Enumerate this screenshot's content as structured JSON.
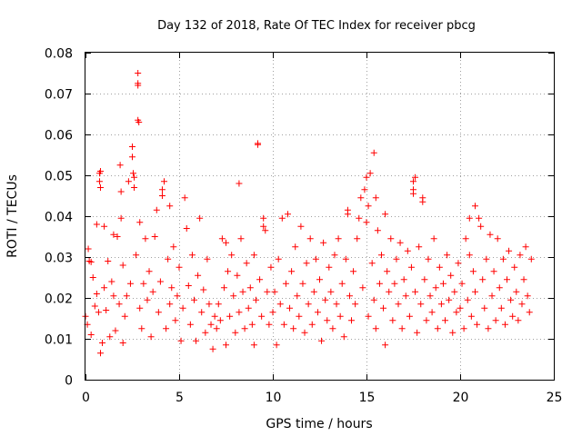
{
  "chart_data": {
    "type": "scatter",
    "title": "Day 132 of 2018, Rate Of TEC Index for receiver pbcg",
    "xlabel": "GPS time / hours",
    "ylabel": "ROTI / TECUs",
    "xlim": [
      0,
      25
    ],
    "ylim": [
      0,
      0.08
    ],
    "x_ticks": [
      "0",
      "5",
      "10",
      "15",
      "20",
      "25"
    ],
    "y_ticks": [
      "0",
      "0.01",
      "0.02",
      "0.03",
      "0.04",
      "0.05",
      "0.06",
      "0.07",
      "0.08"
    ],
    "grid": true,
    "marker": "+",
    "color": "#ff0000",
    "series": [
      {
        "points": [
          [
            0.0,
            0.0155
          ],
          [
            0.1,
            0.0135
          ],
          [
            0.15,
            0.032
          ],
          [
            0.2,
            0.029
          ],
          [
            0.3,
            0.0288
          ],
          [
            0.3,
            0.011
          ],
          [
            0.4,
            0.025
          ],
          [
            0.5,
            0.018
          ],
          [
            0.6,
            0.021
          ],
          [
            0.6,
            0.038
          ],
          [
            0.7,
            0.0165
          ],
          [
            0.75,
            0.0505
          ],
          [
            0.75,
            0.0485
          ],
          [
            0.8,
            0.051
          ],
          [
            0.8,
            0.047
          ],
          [
            0.8,
            0.0065
          ],
          [
            0.9,
            0.009
          ],
          [
            1.0,
            0.0375
          ],
          [
            1.0,
            0.0225
          ],
          [
            1.1,
            0.017
          ],
          [
            1.2,
            0.029
          ],
          [
            1.3,
            0.0105
          ],
          [
            1.4,
            0.024
          ],
          [
            1.5,
            0.0355
          ],
          [
            1.5,
            0.0205
          ],
          [
            1.6,
            0.012
          ],
          [
            1.7,
            0.035
          ],
          [
            1.8,
            0.0185
          ],
          [
            1.85,
            0.0525
          ],
          [
            1.9,
            0.046
          ],
          [
            1.9,
            0.0395
          ],
          [
            2.0,
            0.028
          ],
          [
            2.0,
            0.009
          ],
          [
            2.1,
            0.0155
          ],
          [
            2.2,
            0.0205
          ],
          [
            2.3,
            0.0485
          ],
          [
            2.4,
            0.0235
          ],
          [
            2.5,
            0.057
          ],
          [
            2.5,
            0.0545
          ],
          [
            2.55,
            0.0505
          ],
          [
            2.6,
            0.0495
          ],
          [
            2.6,
            0.047
          ],
          [
            2.7,
            0.0305
          ],
          [
            2.8,
            0.075
          ],
          [
            2.8,
            0.0725
          ],
          [
            2.8,
            0.072
          ],
          [
            2.8,
            0.0635
          ],
          [
            2.85,
            0.063
          ],
          [
            2.9,
            0.0385
          ],
          [
            2.9,
            0.0175
          ],
          [
            3.0,
            0.0125
          ],
          [
            3.1,
            0.0235
          ],
          [
            3.2,
            0.0345
          ],
          [
            3.3,
            0.0195
          ],
          [
            3.4,
            0.0265
          ],
          [
            3.5,
            0.0105
          ],
          [
            3.6,
            0.0215
          ],
          [
            3.7,
            0.035
          ],
          [
            3.8,
            0.0415
          ],
          [
            3.9,
            0.0165
          ],
          [
            4.0,
            0.024
          ],
          [
            4.1,
            0.0465
          ],
          [
            4.1,
            0.045
          ],
          [
            4.2,
            0.0485
          ],
          [
            4.3,
            0.0125
          ],
          [
            4.4,
            0.0295
          ],
          [
            4.5,
            0.0425
          ],
          [
            4.5,
            0.0185
          ],
          [
            4.6,
            0.0225
          ],
          [
            4.7,
            0.0325
          ],
          [
            4.8,
            0.0145
          ],
          [
            4.9,
            0.0205
          ],
          [
            5.0,
            0.0275
          ],
          [
            5.1,
            0.0095
          ],
          [
            5.2,
            0.0175
          ],
          [
            5.3,
            0.0445
          ],
          [
            5.4,
            0.037
          ],
          [
            5.5,
            0.023
          ],
          [
            5.6,
            0.0135
          ],
          [
            5.7,
            0.0305
          ],
          [
            5.8,
            0.0195
          ],
          [
            5.9,
            0.0095
          ],
          [
            6.0,
            0.0255
          ],
          [
            6.1,
            0.0395
          ],
          [
            6.2,
            0.0165
          ],
          [
            6.3,
            0.022
          ],
          [
            6.4,
            0.0115
          ],
          [
            6.5,
            0.0295
          ],
          [
            6.6,
            0.0185
          ],
          [
            6.7,
            0.0135
          ],
          [
            6.8,
            0.0075
          ],
          [
            6.9,
            0.0155
          ],
          [
            7.0,
            0.0125
          ],
          [
            7.1,
            0.0185
          ],
          [
            7.2,
            0.0145
          ],
          [
            7.3,
            0.0345
          ],
          [
            7.4,
            0.0225
          ],
          [
            7.5,
            0.0335
          ],
          [
            7.5,
            0.0085
          ],
          [
            7.6,
            0.0265
          ],
          [
            7.7,
            0.0155
          ],
          [
            7.8,
            0.0305
          ],
          [
            7.9,
            0.0205
          ],
          [
            8.0,
            0.0115
          ],
          [
            8.1,
            0.0255
          ],
          [
            8.2,
            0.0165
          ],
          [
            8.2,
            0.048
          ],
          [
            8.3,
            0.0345
          ],
          [
            8.4,
            0.0215
          ],
          [
            8.5,
            0.0125
          ],
          [
            8.6,
            0.0285
          ],
          [
            8.7,
            0.0175
          ],
          [
            8.8,
            0.0225
          ],
          [
            8.9,
            0.0135
          ],
          [
            9.0,
            0.0305
          ],
          [
            9.0,
            0.0085
          ],
          [
            9.1,
            0.0195
          ],
          [
            9.2,
            0.0578
          ],
          [
            9.2,
            0.0575
          ],
          [
            9.3,
            0.0245
          ],
          [
            9.4,
            0.0155
          ],
          [
            9.5,
            0.0395
          ],
          [
            9.5,
            0.0375
          ],
          [
            9.6,
            0.0365
          ],
          [
            9.7,
            0.0215
          ],
          [
            9.8,
            0.0135
          ],
          [
            9.9,
            0.0275
          ],
          [
            10.0,
            0.0165
          ],
          [
            10.1,
            0.0215
          ],
          [
            10.2,
            0.0085
          ],
          [
            10.3,
            0.0295
          ],
          [
            10.4,
            0.0185
          ],
          [
            10.5,
            0.0395
          ],
          [
            10.6,
            0.0135
          ],
          [
            10.7,
            0.0235
          ],
          [
            10.8,
            0.0405
          ],
          [
            10.9,
            0.0175
          ],
          [
            11.0,
            0.0265
          ],
          [
            11.1,
            0.0125
          ],
          [
            11.2,
            0.0325
          ],
          [
            11.3,
            0.0205
          ],
          [
            11.4,
            0.0155
          ],
          [
            11.5,
            0.0375
          ],
          [
            11.6,
            0.0235
          ],
          [
            11.7,
            0.0115
          ],
          [
            11.8,
            0.0285
          ],
          [
            11.9,
            0.0185
          ],
          [
            12.0,
            0.0345
          ],
          [
            12.1,
            0.0135
          ],
          [
            12.2,
            0.0215
          ],
          [
            12.3,
            0.0295
          ],
          [
            12.4,
            0.0165
          ],
          [
            12.5,
            0.0245
          ],
          [
            12.6,
            0.0095
          ],
          [
            12.7,
            0.0335
          ],
          [
            12.8,
            0.0195
          ],
          [
            12.9,
            0.0145
          ],
          [
            13.0,
            0.0275
          ],
          [
            13.1,
            0.0215
          ],
          [
            13.2,
            0.0125
          ],
          [
            13.3,
            0.0305
          ],
          [
            13.4,
            0.0185
          ],
          [
            13.5,
            0.0345
          ],
          [
            13.6,
            0.0155
          ],
          [
            13.7,
            0.0235
          ],
          [
            13.8,
            0.0105
          ],
          [
            13.9,
            0.0295
          ],
          [
            14.0,
            0.0415
          ],
          [
            14.0,
            0.0405
          ],
          [
            14.1,
            0.0205
          ],
          [
            14.2,
            0.0145
          ],
          [
            14.3,
            0.0265
          ],
          [
            14.4,
            0.0185
          ],
          [
            14.5,
            0.0345
          ],
          [
            14.6,
            0.0395
          ],
          [
            14.7,
            0.0445
          ],
          [
            14.8,
            0.0225
          ],
          [
            14.9,
            0.0465
          ],
          [
            15.0,
            0.0385
          ],
          [
            15.0,
            0.0495
          ],
          [
            15.1,
            0.0425
          ],
          [
            15.1,
            0.0155
          ],
          [
            15.2,
            0.0505
          ],
          [
            15.3,
            0.0285
          ],
          [
            15.4,
            0.0555
          ],
          [
            15.4,
            0.0195
          ],
          [
            15.5,
            0.0445
          ],
          [
            15.5,
            0.0125
          ],
          [
            15.6,
            0.0365
          ],
          [
            15.7,
            0.0235
          ],
          [
            15.8,
            0.0305
          ],
          [
            15.9,
            0.0175
          ],
          [
            16.0,
            0.0405
          ],
          [
            16.0,
            0.0085
          ],
          [
            16.1,
            0.0265
          ],
          [
            16.2,
            0.0215
          ],
          [
            16.3,
            0.0345
          ],
          [
            16.4,
            0.0145
          ],
          [
            16.5,
            0.0235
          ],
          [
            16.6,
            0.0295
          ],
          [
            16.7,
            0.0185
          ],
          [
            16.8,
            0.0335
          ],
          [
            16.9,
            0.0125
          ],
          [
            17.0,
            0.0245
          ],
          [
            17.1,
            0.0205
          ],
          [
            17.2,
            0.0315
          ],
          [
            17.3,
            0.0155
          ],
          [
            17.4,
            0.0275
          ],
          [
            17.5,
            0.0465
          ],
          [
            17.5,
            0.0485
          ],
          [
            17.5,
            0.0455
          ],
          [
            17.6,
            0.0495
          ],
          [
            17.6,
            0.0215
          ],
          [
            17.7,
            0.0115
          ],
          [
            17.8,
            0.0325
          ],
          [
            17.9,
            0.0185
          ],
          [
            18.0,
            0.0445
          ],
          [
            18.0,
            0.0435
          ],
          [
            18.1,
            0.0245
          ],
          [
            18.2,
            0.0145
          ],
          [
            18.3,
            0.0295
          ],
          [
            18.4,
            0.0205
          ],
          [
            18.5,
            0.0165
          ],
          [
            18.6,
            0.0345
          ],
          [
            18.7,
            0.0225
          ],
          [
            18.8,
            0.0125
          ],
          [
            18.9,
            0.0275
          ],
          [
            19.0,
            0.0185
          ],
          [
            19.1,
            0.0235
          ],
          [
            19.2,
            0.0145
          ],
          [
            19.3,
            0.0305
          ],
          [
            19.4,
            0.0195
          ],
          [
            19.5,
            0.0255
          ],
          [
            19.6,
            0.0115
          ],
          [
            19.7,
            0.0215
          ],
          [
            19.8,
            0.0165
          ],
          [
            19.9,
            0.0285
          ],
          [
            20.0,
            0.0175
          ],
          [
            20.1,
            0.0235
          ],
          [
            20.2,
            0.0125
          ],
          [
            20.3,
            0.0345
          ],
          [
            20.4,
            0.0195
          ],
          [
            20.5,
            0.0395
          ],
          [
            20.5,
            0.0305
          ],
          [
            20.6,
            0.0155
          ],
          [
            20.7,
            0.0265
          ],
          [
            20.8,
            0.0215
          ],
          [
            20.8,
            0.0425
          ],
          [
            20.9,
            0.0135
          ],
          [
            21.0,
            0.0395
          ],
          [
            21.1,
            0.0375
          ],
          [
            21.2,
            0.0245
          ],
          [
            21.3,
            0.0175
          ],
          [
            21.4,
            0.0295
          ],
          [
            21.5,
            0.0125
          ],
          [
            21.6,
            0.0355
          ],
          [
            21.7,
            0.0205
          ],
          [
            21.8,
            0.0265
          ],
          [
            21.9,
            0.0145
          ],
          [
            22.0,
            0.0345
          ],
          [
            22.1,
            0.0225
          ],
          [
            22.2,
            0.0175
          ],
          [
            22.3,
            0.0295
          ],
          [
            22.4,
            0.0135
          ],
          [
            22.5,
            0.0245
          ],
          [
            22.6,
            0.0315
          ],
          [
            22.7,
            0.0195
          ],
          [
            22.8,
            0.0155
          ],
          [
            22.9,
            0.0275
          ],
          [
            23.0,
            0.0215
          ],
          [
            23.1,
            0.0145
          ],
          [
            23.2,
            0.0305
          ],
          [
            23.3,
            0.0185
          ],
          [
            23.4,
            0.0245
          ],
          [
            23.5,
            0.0325
          ],
          [
            23.6,
            0.0205
          ],
          [
            23.7,
            0.0165
          ],
          [
            23.8,
            0.0295
          ]
        ]
      }
    ]
  }
}
